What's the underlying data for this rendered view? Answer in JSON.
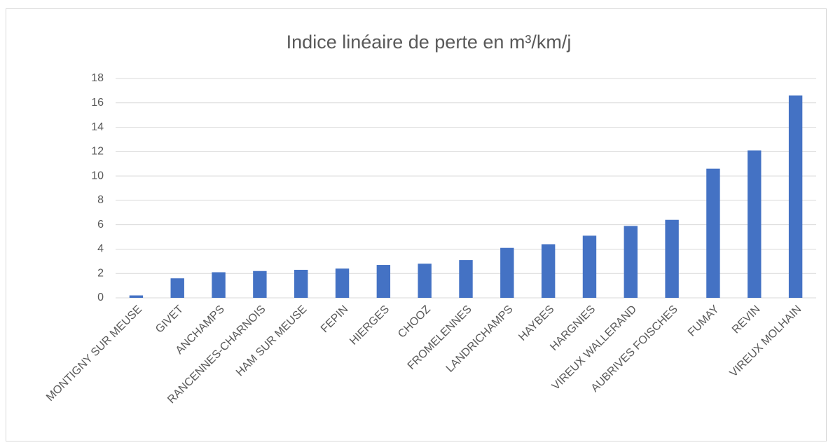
{
  "chart_data": {
    "type": "bar",
    "title": "Indice linéaire de perte en m³/km/j",
    "categories": [
      "MONTIGNY SUR MEUSE",
      "GIVET",
      "ANCHAMPS",
      "RANCENNES-CHARNOIS",
      "HAM SUR MEUSE",
      "FEPIN",
      "HIERGES",
      "CHOOZ",
      "FROMELENNES",
      "LANDRICHAMPS",
      "HAYBES",
      "HARGNIES",
      "VIREUX WALLERAND",
      "AUBRIVES FOISCHES",
      "FUMAY",
      "REVIN",
      "VIREUX MOLHAIN"
    ],
    "values": [
      0.2,
      1.6,
      2.1,
      2.2,
      2.3,
      2.4,
      2.7,
      2.8,
      3.1,
      4.1,
      4.4,
      5.1,
      5.9,
      6.4,
      10.6,
      12.1,
      16.6
    ],
    "color": "#4472c4",
    "ylim": [
      0,
      18
    ],
    "yticks": [
      0,
      2,
      4,
      6,
      8,
      10,
      12,
      14,
      16,
      18
    ],
    "grid": true
  }
}
